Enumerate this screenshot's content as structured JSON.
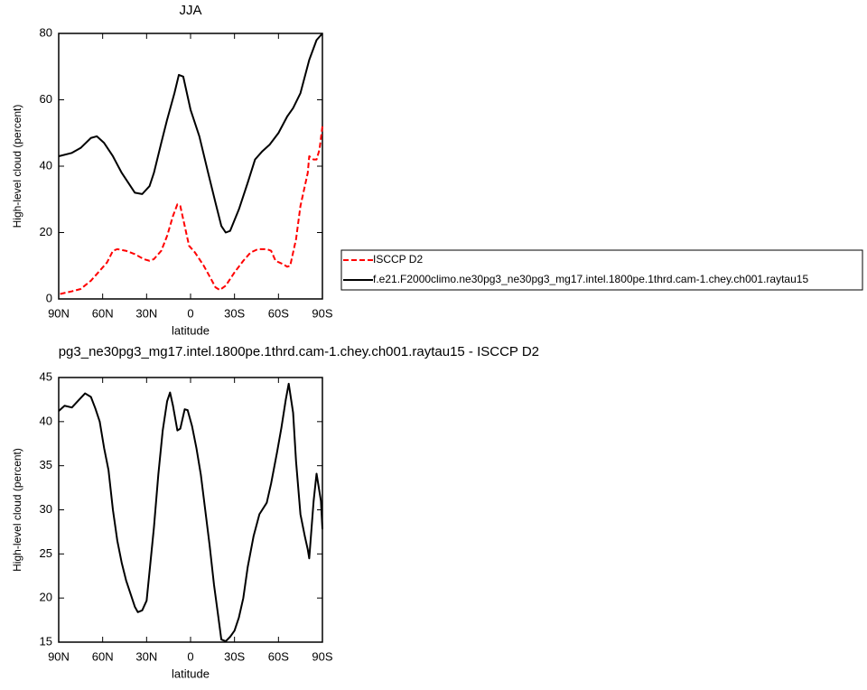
{
  "chart_data": [
    {
      "type": "line",
      "title": "JJA",
      "xlabel": "latitude",
      "ylabel": "High-level cloud (percent)",
      "xlim": [
        90,
        -90
      ],
      "xticks": [
        {
          "value": 90,
          "label": "90N"
        },
        {
          "value": 60,
          "label": "60N"
        },
        {
          "value": 30,
          "label": "30N"
        },
        0,
        {
          "value": -30,
          "label": "30S"
        },
        {
          "value": -60,
          "label": "60S"
        },
        {
          "value": -90,
          "label": "90S"
        }
      ],
      "ylim": [
        0,
        80
      ],
      "yticks": [
        0,
        20,
        40,
        60,
        80
      ],
      "legend": "outside-right",
      "series": [
        {
          "name": "ISCCP D2",
          "color": "#ff0000",
          "dash": true,
          "x": [
            89,
            81,
            75,
            68,
            62,
            57,
            53,
            50,
            44,
            38,
            32,
            28,
            25,
            20,
            16,
            12,
            9,
            7,
            4,
            1,
            -3,
            -9,
            -14,
            -17,
            -20,
            -24,
            -30,
            -36,
            -41,
            -46,
            -52,
            -55,
            -58,
            -63,
            -66,
            -68,
            -72,
            -75,
            -80,
            -81,
            -84,
            -86,
            -88,
            -90
          ],
          "values": [
            1.5,
            2.3,
            3,
            5.5,
            8.5,
            11,
            14.5,
            15,
            14.5,
            13.5,
            12,
            11.5,
            12,
            14.5,
            19,
            25,
            28.5,
            28,
            22,
            16,
            14,
            10,
            6,
            3.5,
            2.7,
            4,
            8,
            11.5,
            14,
            15,
            15,
            14.5,
            11.5,
            10.5,
            9.7,
            10,
            18,
            28,
            38,
            43,
            42,
            42,
            45,
            52
          ]
        },
        {
          "name": "f.e21.F2000climo.ne30pg3_ne30pg3_mg17.intel.1800pe.1thrd.cam-1.chey.ch001.raytau15",
          "color": "#000000",
          "dash": false,
          "x": [
            90,
            81,
            75,
            68,
            64,
            59,
            53,
            47,
            41,
            38,
            33,
            28,
            25,
            20,
            16,
            11,
            8,
            5,
            0,
            -6,
            -12,
            -17,
            -21,
            -24,
            -27,
            -33,
            -39,
            -44,
            -49,
            -54,
            -60,
            -66,
            -70,
            -75,
            -81,
            -86,
            -90
          ],
          "values": [
            43,
            44,
            45.5,
            48.5,
            49,
            47,
            43,
            38,
            34,
            32,
            31.6,
            34,
            38,
            47,
            54,
            62,
            67.5,
            67,
            57,
            49,
            38,
            29,
            22,
            20,
            20.5,
            27,
            35,
            42,
            44.5,
            46.5,
            50,
            55,
            57.5,
            62,
            72,
            78,
            80
          ]
        }
      ]
    },
    {
      "type": "line",
      "title": "pg3_ne30pg3_mg17.intel.1800pe.1thrd.cam-1.chey.ch001.raytau15 - ISCCP D2",
      "xlabel": "latitude",
      "ylabel": "High-level cloud (percent)",
      "xlim": [
        90,
        -90
      ],
      "xticks": [
        {
          "value": 90,
          "label": "90N"
        },
        {
          "value": 60,
          "label": "60N"
        },
        {
          "value": 30,
          "label": "30N"
        },
        0,
        {
          "value": -30,
          "label": "30S"
        },
        {
          "value": -60,
          "label": "60S"
        },
        {
          "value": -90,
          "label": "90S"
        }
      ],
      "ylim": [
        15,
        45
      ],
      "yticks": [
        15,
        20,
        25,
        30,
        35,
        40,
        45
      ],
      "series": [
        {
          "color": "#000000",
          "dash": false,
          "x": [
            90,
            86,
            81,
            76,
            72,
            68,
            65,
            62,
            59,
            56,
            53,
            50,
            47,
            44,
            41,
            38,
            36,
            33,
            30,
            28,
            25,
            22,
            19,
            16,
            14,
            12,
            9,
            7,
            4,
            2,
            -1,
            -4,
            -7,
            -10,
            -13,
            -16,
            -19,
            -21,
            -24,
            -27,
            -30,
            -33,
            -36,
            -39,
            -43,
            -47,
            -52,
            -55,
            -59,
            -62,
            -65,
            -67,
            -70,
            -72,
            -75,
            -78,
            -80,
            -81,
            -84,
            -86,
            -89,
            -90
          ],
          "values": [
            41.2,
            41.8,
            41.6,
            42.5,
            43.2,
            42.8,
            41.5,
            40,
            37,
            34.5,
            30,
            26.5,
            24,
            22,
            20.5,
            19,
            18.4,
            18.6,
            19.7,
            23,
            28,
            34,
            39,
            42.3,
            43.3,
            41.8,
            39,
            39.2,
            41.4,
            41.3,
            39.5,
            37,
            34,
            30,
            26,
            21.5,
            17.8,
            15.3,
            15.1,
            15.6,
            16.3,
            17.8,
            20,
            23.5,
            27,
            29.5,
            30.8,
            33,
            36.5,
            39.3,
            42.5,
            44.3,
            41,
            35.5,
            29.5,
            27,
            25.5,
            24.5,
            31,
            34.1,
            31,
            27.8
          ]
        }
      ]
    }
  ]
}
